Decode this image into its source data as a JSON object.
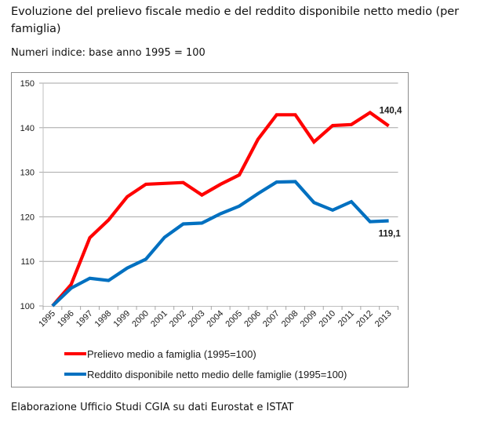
{
  "page": {
    "title": "Evoluzione del prelievo fiscale medio e del reddito disponibile netto medio (per famiglia)",
    "subtitle": "Numeri indice: base anno 1995 = 100",
    "footer": "Elaborazione Ufficio Studi CGIA su dati Eurostat e ISTAT"
  },
  "chart_data": {
    "type": "line",
    "title": "Evoluzione del prelievo fiscale medio e del reddito disponibile netto medio (per famiglia)",
    "subtitle": "Numeri indice: base anno 1995 = 100",
    "xlabel": "",
    "ylabel": "",
    "categories": [
      "1995",
      "1996",
      "1997",
      "1998",
      "1999",
      "2000",
      "2001",
      "2002",
      "2003",
      "2004",
      "2005",
      "2006",
      "2007",
      "2008",
      "2009",
      "2010",
      "2011",
      "2012",
      "2013"
    ],
    "ylim": [
      100,
      150
    ],
    "yticks": [
      100,
      110,
      120,
      130,
      140,
      150
    ],
    "grid": true,
    "legend_position": "bottom",
    "series": [
      {
        "name": "Prelievo medio a famiglia (1995=100)",
        "color": "#ff0000",
        "values": [
          100,
          104.8,
          115.3,
          119.3,
          124.5,
          127.3,
          127.5,
          127.7,
          124.9,
          127.3,
          129.4,
          137.4,
          142.9,
          142.9,
          136.8,
          140.5,
          140.7,
          143.4,
          140.4
        ],
        "end_label": "140,4"
      },
      {
        "name": "Reddito disponibile netto medio delle famiglie (1995=100)",
        "color": "#0070c0",
        "values": [
          100,
          104.0,
          106.2,
          105.7,
          108.5,
          110.5,
          115.4,
          118.4,
          118.6,
          120.7,
          122.4,
          125.2,
          127.8,
          127.9,
          123.2,
          121.5,
          123.4,
          118.9,
          119.1
        ],
        "end_label": "119,1"
      }
    ],
    "annotations": [
      "140,4",
      "119,1"
    ],
    "source": "Elaborazione Ufficio Studi CGIA su dati Eurostat e ISTAT"
  }
}
